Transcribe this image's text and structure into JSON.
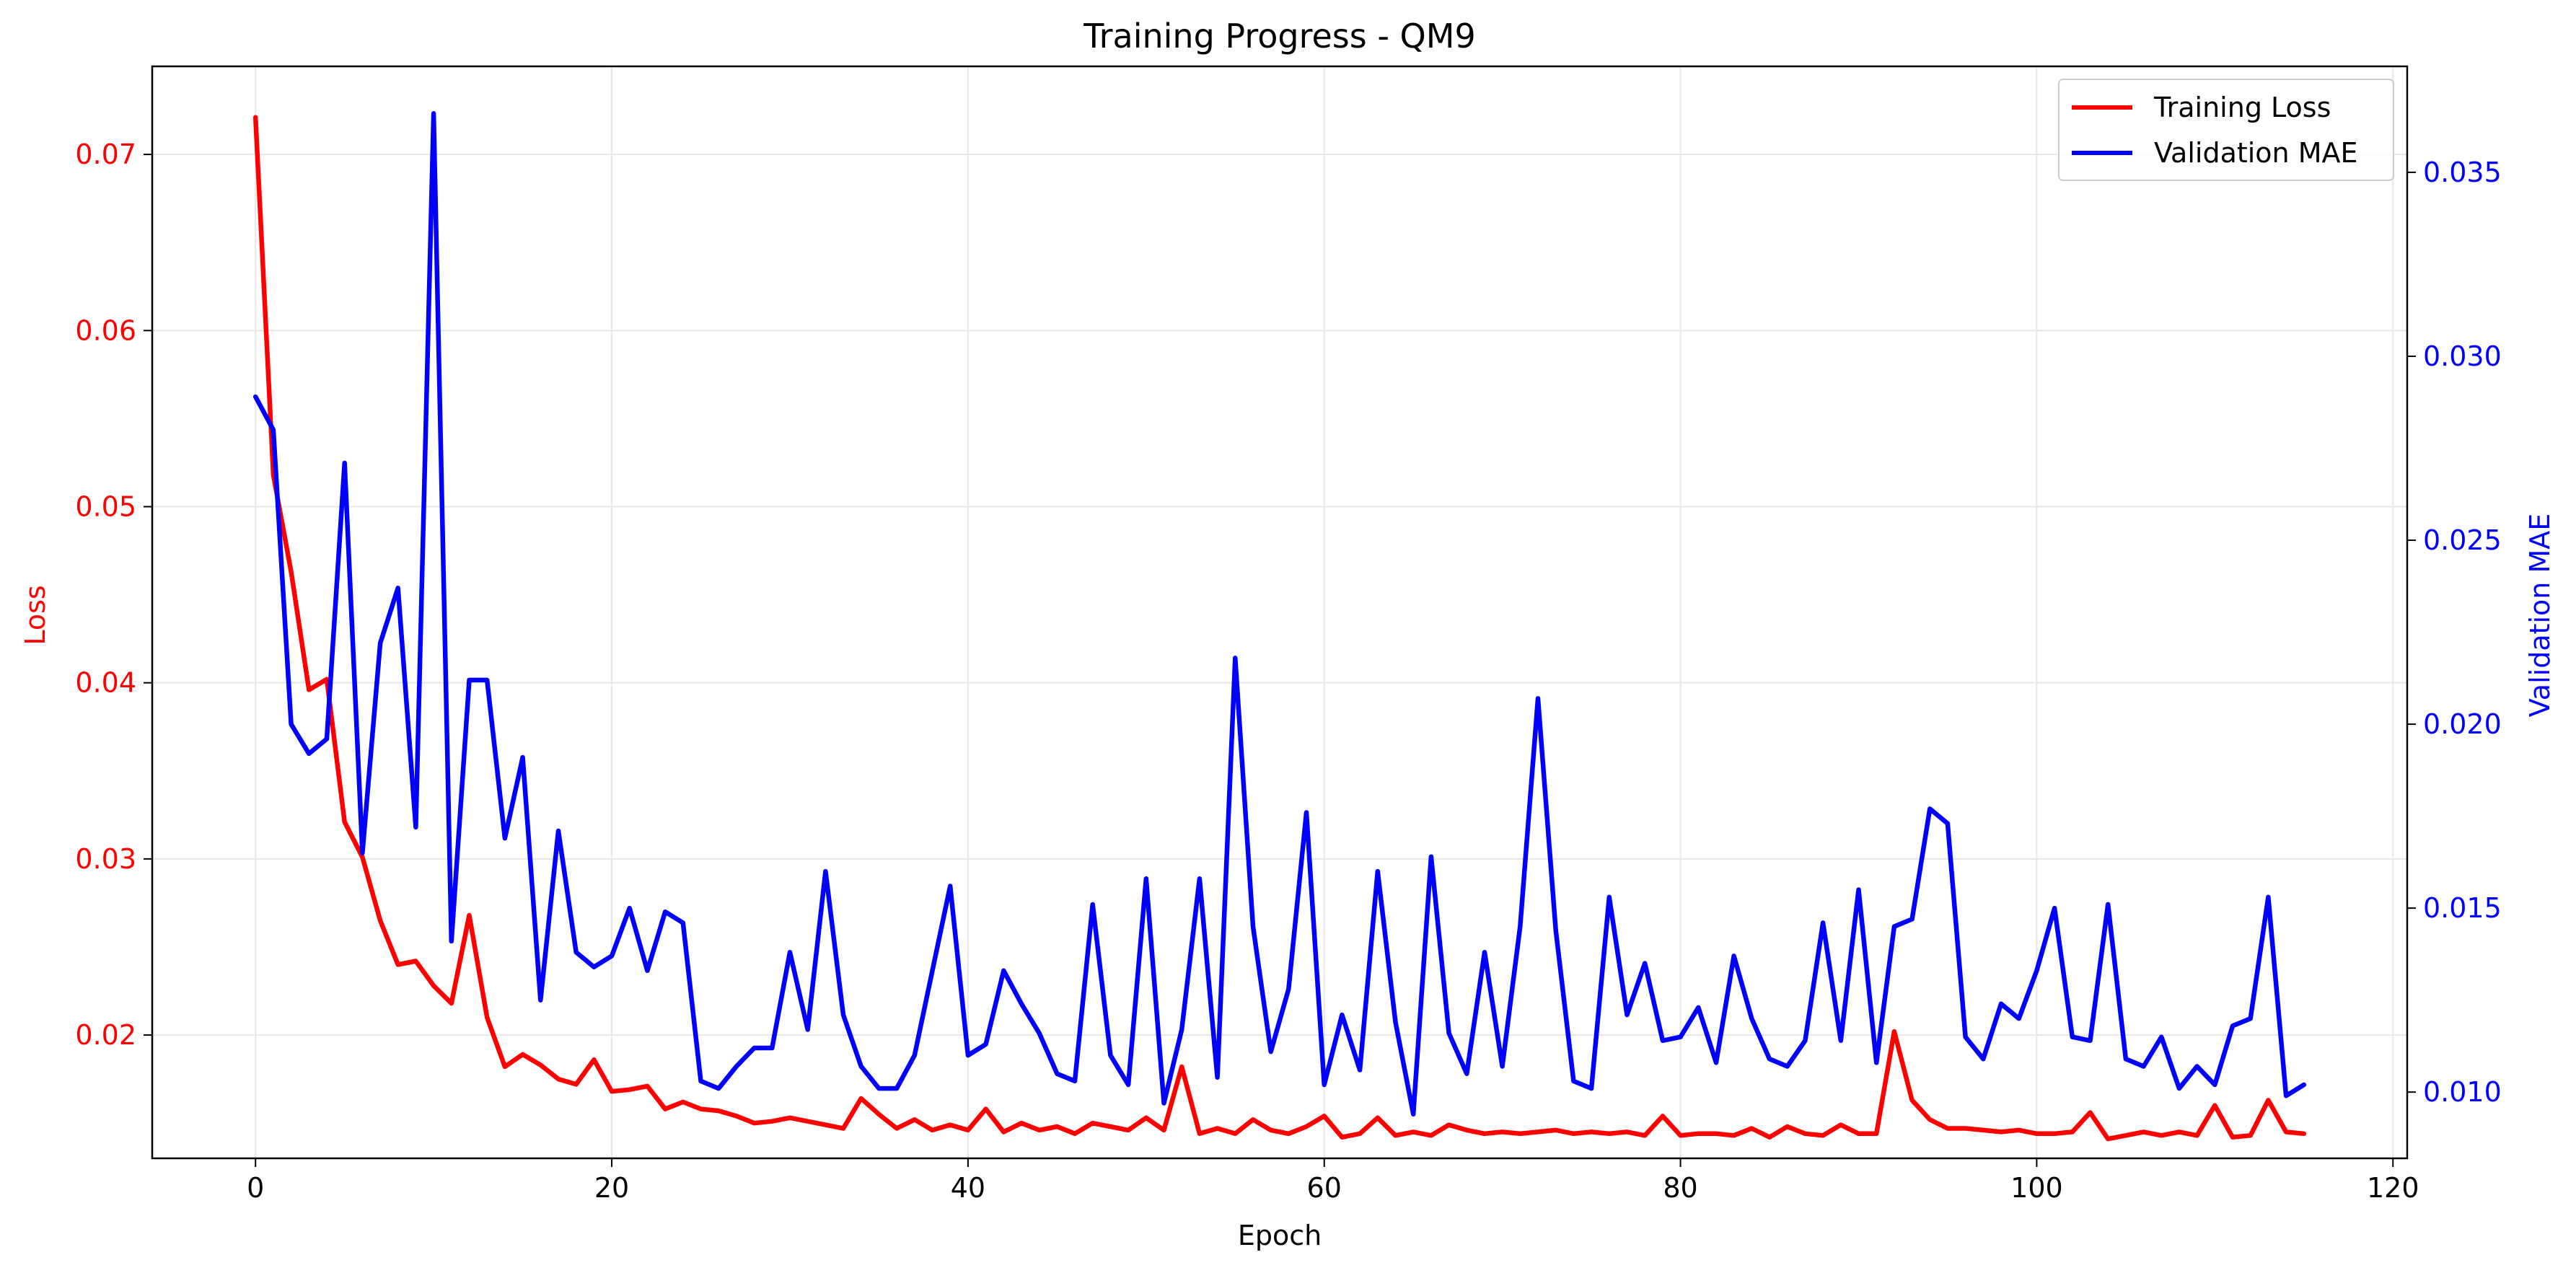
{
  "chart_data": {
    "type": "line",
    "title": "Training Progress - QM9",
    "xlabel": "Epoch",
    "ylabel_left": "Loss",
    "ylabel_right": "Validation MAE",
    "xlim": [
      -5.8,
      120.8
    ],
    "ylim_left": [
      0.013,
      0.075
    ],
    "ylim_right": [
      0.0082,
      0.03788
    ],
    "x_ticks": [
      0,
      20,
      40,
      60,
      80,
      100,
      120
    ],
    "y_ticks_left": [
      0.02,
      0.03,
      0.04,
      0.05,
      0.06,
      0.07
    ],
    "y_ticks_left_labels": [
      "0.02",
      "0.03",
      "0.04",
      "0.05",
      "0.06",
      "0.07"
    ],
    "y_ticks_right": [
      0.01,
      0.015,
      0.02,
      0.025,
      0.03,
      0.035
    ],
    "y_ticks_right_labels": [
      "0.010",
      "0.015",
      "0.020",
      "0.025",
      "0.030",
      "0.035"
    ],
    "grid": true,
    "legend_position": "top-right",
    "colors": {
      "left_axis": "#ff0000",
      "right_axis": "#0000ff",
      "grid": "#e6e6e6"
    },
    "series": [
      {
        "name": "Training Loss",
        "axis": "left",
        "color": "#ff0000",
        "x": [
          0,
          1,
          2,
          3,
          4,
          5,
          6,
          7,
          8,
          9,
          10,
          11,
          12,
          13,
          14,
          15,
          16,
          17,
          18,
          19,
          20,
          21,
          22,
          23,
          24,
          25,
          26,
          27,
          28,
          29,
          30,
          31,
          32,
          33,
          34,
          35,
          36,
          37,
          38,
          39,
          40,
          41,
          42,
          43,
          44,
          45,
          46,
          47,
          48,
          49,
          50,
          51,
          52,
          53,
          54,
          55,
          56,
          57,
          58,
          59,
          60,
          61,
          62,
          63,
          64,
          65,
          66,
          67,
          68,
          69,
          70,
          71,
          72,
          73,
          74,
          75,
          76,
          77,
          78,
          79,
          80,
          81,
          82,
          83,
          84,
          85,
          86,
          87,
          88,
          89,
          90,
          91,
          92,
          93,
          94,
          95,
          96,
          97,
          98,
          99,
          100,
          101,
          102,
          103,
          104,
          105,
          106,
          107,
          108,
          109,
          110,
          111,
          112,
          113,
          114,
          115
        ],
        "values": [
          0.0721,
          0.0518,
          0.0463,
          0.0396,
          0.0402,
          0.0321,
          0.0301,
          0.0265,
          0.024,
          0.0242,
          0.0228,
          0.0218,
          0.0268,
          0.021,
          0.0182,
          0.0189,
          0.0183,
          0.0175,
          0.0172,
          0.0186,
          0.0168,
          0.0169,
          0.0171,
          0.0158,
          0.0162,
          0.0158,
          0.0157,
          0.0154,
          0.015,
          0.0151,
          0.0153,
          0.0151,
          0.0149,
          0.0147,
          0.0164,
          0.0155,
          0.0147,
          0.0152,
          0.0146,
          0.0149,
          0.0146,
          0.0158,
          0.0145,
          0.015,
          0.0146,
          0.0148,
          0.0144,
          0.015,
          0.0148,
          0.0146,
          0.0153,
          0.0146,
          0.0182,
          0.0144,
          0.0147,
          0.0144,
          0.0152,
          0.0146,
          0.0144,
          0.0148,
          0.0154,
          0.0142,
          0.0144,
          0.0153,
          0.0143,
          0.0145,
          0.0143,
          0.0149,
          0.0146,
          0.0144,
          0.0145,
          0.0144,
          0.0145,
          0.0146,
          0.0144,
          0.0145,
          0.0144,
          0.0145,
          0.0143,
          0.0154,
          0.0143,
          0.0144,
          0.0144,
          0.0143,
          0.0147,
          0.0142,
          0.0148,
          0.0144,
          0.0143,
          0.0149,
          0.0144,
          0.0144,
          0.0202,
          0.0163,
          0.0152,
          0.0147,
          0.0147,
          0.0146,
          0.0145,
          0.0146,
          0.0144,
          0.0144,
          0.0145,
          0.0156,
          0.0141,
          0.0143,
          0.0145,
          0.0143,
          0.0145,
          0.0143,
          0.016,
          0.0142,
          0.0143,
          0.0163,
          0.0145,
          0.0144
        ]
      },
      {
        "name": "Validation MAE",
        "axis": "right",
        "color": "#0000ff",
        "x": [
          0,
          1,
          2,
          3,
          4,
          5,
          6,
          7,
          8,
          9,
          10,
          11,
          12,
          13,
          14,
          15,
          16,
          17,
          18,
          19,
          20,
          21,
          22,
          23,
          24,
          25,
          26,
          27,
          28,
          29,
          30,
          31,
          32,
          33,
          34,
          35,
          36,
          37,
          38,
          39,
          40,
          41,
          42,
          43,
          44,
          45,
          46,
          47,
          48,
          49,
          50,
          51,
          52,
          53,
          54,
          55,
          56,
          57,
          58,
          59,
          60,
          61,
          62,
          63,
          64,
          65,
          66,
          67,
          68,
          69,
          70,
          71,
          72,
          73,
          74,
          75,
          76,
          77,
          78,
          79,
          80,
          81,
          82,
          83,
          84,
          85,
          86,
          87,
          88,
          89,
          90,
          91,
          92,
          93,
          94,
          95,
          96,
          97,
          98,
          99,
          100,
          101,
          102,
          103,
          104,
          105,
          106,
          107,
          108,
          109,
          110,
          111,
          112,
          113,
          114,
          115
        ],
        "values": [
          0.0289,
          0.028,
          0.02,
          0.0192,
          0.0196,
          0.0271,
          0.0165,
          0.0222,
          0.0237,
          0.0172,
          0.0366,
          0.0141,
          0.0212,
          0.0212,
          0.0169,
          0.0191,
          0.0125,
          0.0171,
          0.0138,
          0.0134,
          0.0137,
          0.015,
          0.0133,
          0.0149,
          0.0146,
          0.0103,
          0.0101,
          0.0107,
          0.0112,
          0.0112,
          0.0138,
          0.0117,
          0.016,
          0.0121,
          0.0107,
          0.0101,
          0.0101,
          0.011,
          0.0133,
          0.0156,
          0.011,
          0.0113,
          0.0133,
          0.0124,
          0.0116,
          0.0105,
          0.0103,
          0.0151,
          0.011,
          0.0102,
          0.0158,
          0.0097,
          0.0117,
          0.0158,
          0.0104,
          0.0218,
          0.0145,
          0.0111,
          0.0128,
          0.0176,
          0.0102,
          0.0121,
          0.0106,
          0.016,
          0.0119,
          0.0094,
          0.0164,
          0.0116,
          0.0105,
          0.0138,
          0.0107,
          0.0145,
          0.0207,
          0.0144,
          0.0103,
          0.0101,
          0.0153,
          0.0121,
          0.0135,
          0.0114,
          0.0115,
          0.0123,
          0.0108,
          0.0137,
          0.012,
          0.0109,
          0.0107,
          0.0114,
          0.0146,
          0.0114,
          0.0155,
          0.0108,
          0.0145,
          0.0147,
          0.0177,
          0.0173,
          0.0115,
          0.0109,
          0.0124,
          0.012,
          0.0133,
          0.015,
          0.0115,
          0.0114,
          0.0151,
          0.0109,
          0.0107,
          0.0115,
          0.0101,
          0.0107,
          0.0102,
          0.0118,
          0.012,
          0.0153,
          0.0099,
          0.0102
        ]
      }
    ]
  }
}
